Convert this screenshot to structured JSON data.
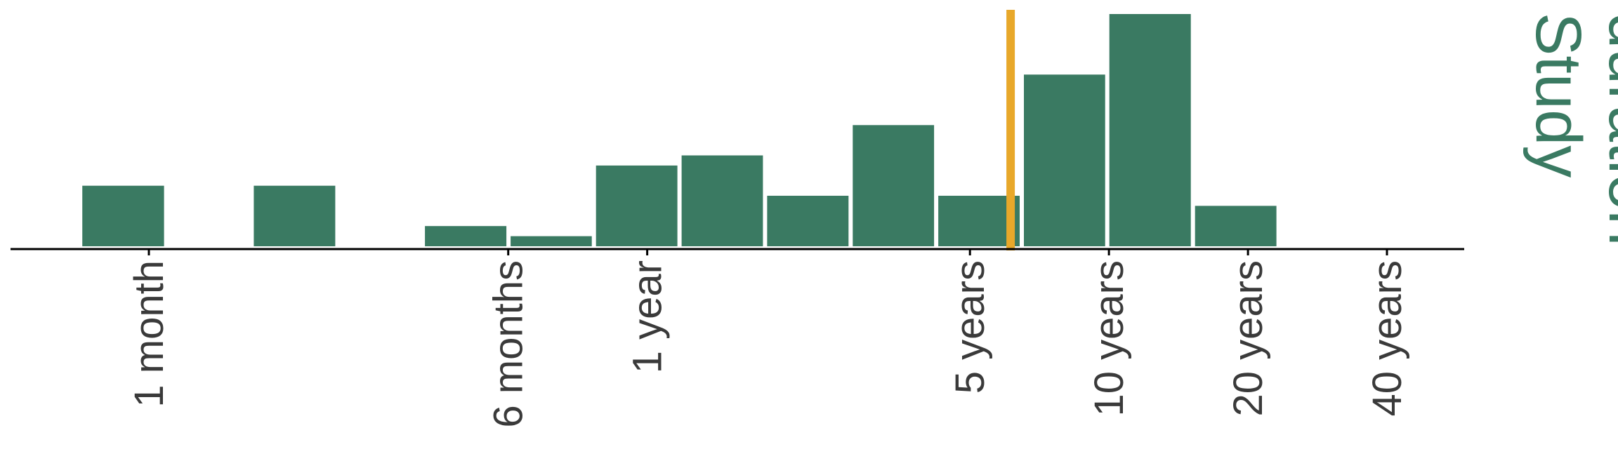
{
  "chart_data": {
    "type": "bar",
    "title": "",
    "xlabel": "",
    "ylabel": "",
    "side_title": [
      "Study",
      "duration"
    ],
    "x_scale": "log",
    "bin_edges_months": [
      0.71,
      1.09,
      1.67,
      2.56,
      3.92,
      6.01,
      9.2,
      14.1,
      21.6,
      33.1,
      50.7,
      77.7,
      119.0,
      182.4,
      279.5,
      428.3,
      656.3
    ],
    "values": [
      3,
      0,
      3,
      0,
      1,
      0.5,
      4,
      4.5,
      2.5,
      6,
      2.5,
      8.5,
      11.5,
      2,
      0,
      0
    ],
    "ylim": [
      0,
      11.5
    ],
    "x_ticks": [
      {
        "label": "1 month",
        "months": 1
      },
      {
        "label": "6 months",
        "months": 6
      },
      {
        "label": "1 year",
        "months": 12
      },
      {
        "label": "5 years",
        "months": 60
      },
      {
        "label": "10 years",
        "months": 120
      },
      {
        "label": "20 years",
        "months": 240
      },
      {
        "label": "40 years",
        "months": 480
      }
    ],
    "marker_months": 73.5,
    "grid": false,
    "legend": "none",
    "colors": {
      "bar": "#3a7a62",
      "marker": "#e8a82a",
      "axis": "#000000",
      "tick_text": "#3a3a3a",
      "title": "#3a7a62"
    }
  }
}
